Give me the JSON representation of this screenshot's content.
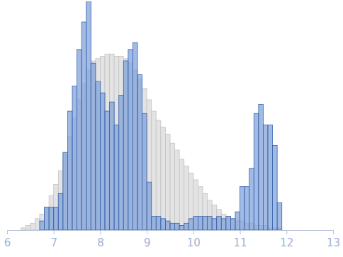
{
  "chart_data": {
    "type": "histogram",
    "bins": [
      6.2,
      6.3,
      6.4,
      6.5,
      6.6,
      6.7,
      6.8,
      6.9,
      7.0,
      7.1,
      7.2,
      7.3,
      7.4,
      7.5,
      7.6,
      7.7,
      7.8,
      7.9,
      8.0,
      8.1,
      8.2,
      8.3,
      8.4,
      8.5,
      8.6,
      8.7,
      8.8,
      8.9,
      9.0,
      9.1,
      9.2,
      9.3,
      9.4,
      9.5,
      9.6,
      9.7,
      9.8,
      9.9,
      10.0,
      10.1,
      10.2,
      10.3,
      10.4,
      10.5,
      10.6,
      10.7,
      10.8,
      10.9,
      11.0,
      11.1,
      11.2,
      11.3,
      11.4,
      11.5,
      11.6,
      11.7,
      11.8,
      11.9,
      12.0,
      12.1
    ],
    "series": [
      {
        "color": "#e3e3e3",
        "values": [
          0,
          1,
          2,
          3,
          5,
          7,
          10,
          15,
          20,
          26,
          33,
          41,
          49,
          57,
          64,
          70,
          74,
          75,
          76,
          77,
          77,
          76,
          76,
          75,
          73,
          70,
          66,
          62,
          57,
          52,
          48,
          45,
          42,
          38,
          35,
          31,
          28,
          25,
          22,
          19,
          16,
          13,
          11,
          9,
          7,
          6,
          5,
          4,
          4,
          3,
          3,
          2,
          2,
          2,
          1,
          1,
          1,
          0,
          0
        ]
      },
      {
        "color": "#7b9ed8",
        "values": [
          0,
          0,
          0,
          0,
          0,
          4,
          10,
          10,
          10,
          16,
          34,
          52,
          63,
          79,
          91,
          100,
          73,
          65,
          60,
          52,
          56,
          46,
          59,
          74,
          79,
          82,
          68,
          51,
          21,
          6,
          6,
          5,
          4,
          3,
          3,
          2,
          3,
          5,
          6,
          6,
          6,
          6,
          5,
          6,
          5,
          6,
          5,
          8,
          19,
          19,
          27,
          51,
          55,
          46,
          46,
          37,
          12,
          0,
          0
        ]
      }
    ],
    "xlim": [
      6,
      13
    ],
    "xticks": [
      6,
      7,
      8,
      9,
      10,
      11,
      12,
      13
    ],
    "ylim": [
      0,
      100
    ],
    "tick_labels": "x"
  }
}
